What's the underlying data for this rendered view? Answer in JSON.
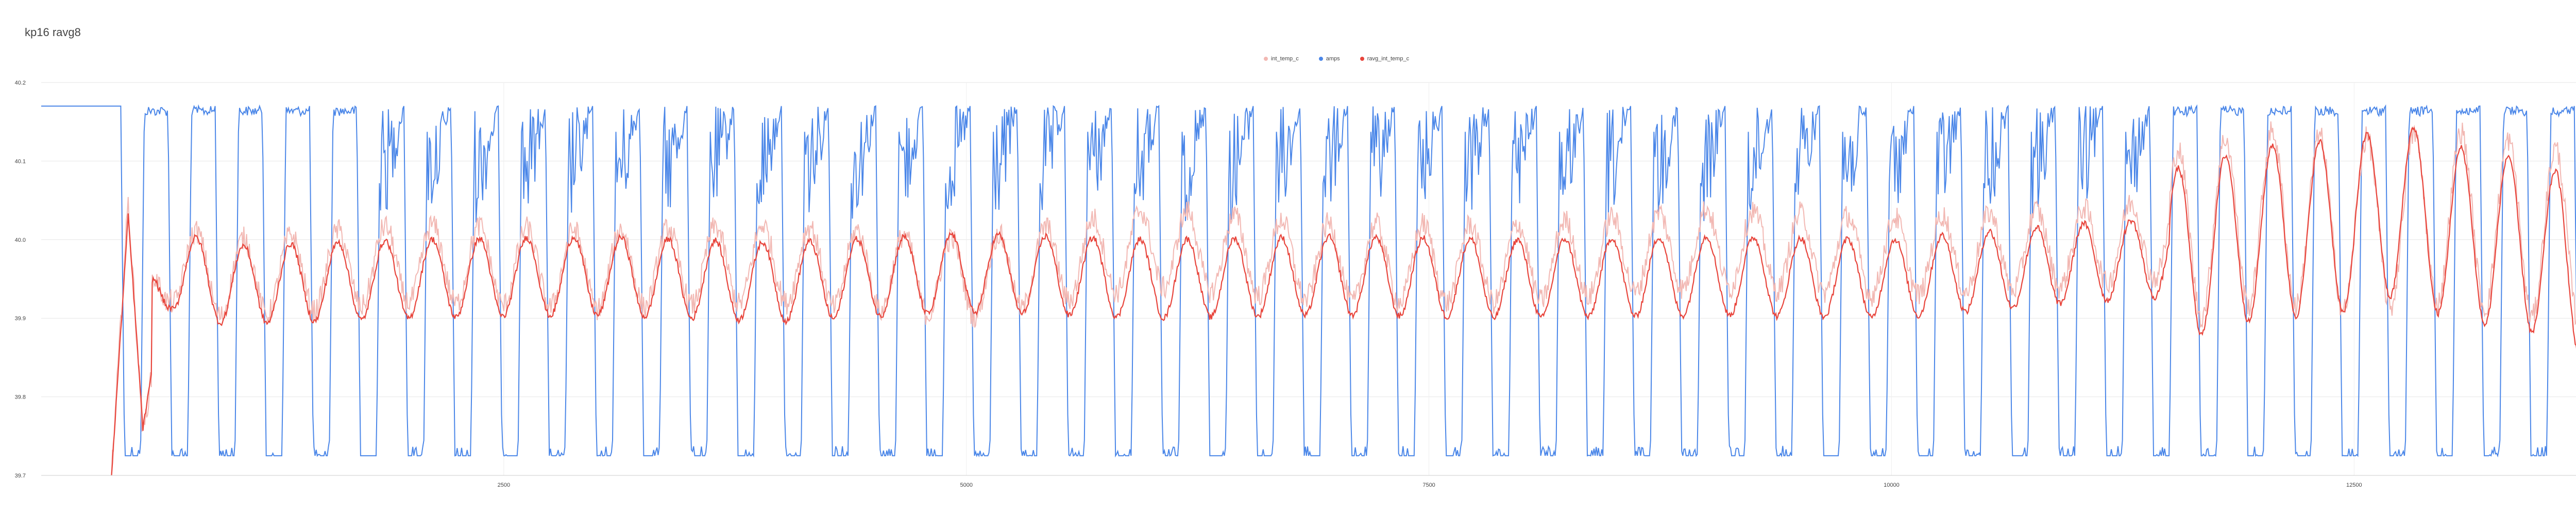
{
  "chart_data": {
    "type": "line",
    "title": "kp16 ravg8",
    "legend": {
      "position": "top",
      "items": [
        {
          "label": "int_temp_c",
          "color": "#f2b8b3"
        },
        {
          "label": "amps",
          "color": "#4a86e8"
        },
        {
          "label": "ravg_int_temp_c",
          "color": "#e8453c"
        }
      ]
    },
    "x_axis": {
      "label": "",
      "range": [
        0,
        14000
      ],
      "ticks": [
        "2500",
        "5000",
        "7500",
        "10000",
        "12500"
      ],
      "tick_values": [
        2500,
        5000,
        7500,
        10000,
        12500
      ]
    },
    "y_axis_left": {
      "label": "",
      "range": [
        39.7,
        40.2
      ],
      "ticks": [
        "39.7",
        "39.8",
        "39.9",
        "40.0",
        "40.1",
        "40.2"
      ],
      "tick_values": [
        39.7,
        39.8,
        39.9,
        40.0,
        40.1,
        40.2
      ]
    },
    "y_axis_right": {
      "label": "",
      "range": [
        0,
        2.0
      ],
      "ticks": [
        "0.0",
        "0.5",
        "1.0",
        "1.5",
        "2.0"
      ],
      "tick_values": [
        0,
        0.5,
        1.0,
        1.5,
        2.0
      ]
    },
    "grid": true,
    "series": [
      {
        "name": "amps",
        "axis": "right",
        "color": "#4a86e8",
        "description": "On/off heater current: flat 1.88 from x=0 to ~430, then oscillates between ~0.1 and ~1.88 with ~53 cycles (period ~255).",
        "x": [
          0,
          430,
          475,
          520,
          620,
          700,
          800,
          880,
          1000,
          1100,
          1200,
          1300,
          1500,
          1700,
          2000,
          2500,
          3000,
          3500,
          4000,
          4500,
          5000,
          5500,
          6000,
          6500,
          7000,
          7500,
          8000,
          8500,
          9000,
          9500,
          10000,
          10500,
          11000,
          11500,
          12000,
          12500,
          13000,
          13500,
          14000
        ],
        "values": [
          1.88,
          1.88,
          0.1,
          1.88,
          0.1,
          1.88,
          0.1,
          1.88,
          0.1,
          1.88,
          0.1,
          1.88,
          0.1,
          1.88,
          0.1,
          1.88,
          0.1,
          1.88,
          0.1,
          1.88,
          0.1,
          1.88,
          0.1,
          1.88,
          0.1,
          1.88,
          0.1,
          1.88,
          0.1,
          1.88,
          0.1,
          1.88,
          0.1,
          1.88,
          0.1,
          1.88,
          0.1,
          1.88,
          1.88
        ]
      },
      {
        "name": "int_temp_c",
        "axis": "left",
        "color": "#f2b8b3",
        "description": "Raw internal temperature, noisy band closely around ravg_int_temp_c.",
        "x": [
          380,
          470,
          550,
          700,
          1000,
          2000,
          3000,
          4000,
          5000,
          6000,
          7000,
          8000,
          9000,
          10000,
          11000,
          11500,
          12000,
          12500,
          13000,
          13500,
          14000
        ],
        "values": [
          39.7,
          40.05,
          39.75,
          40.0,
          39.95,
          40.0,
          39.98,
          40.0,
          39.95,
          40.05,
          40.0,
          40.0,
          40.05,
          40.02,
          40.05,
          40.08,
          40.15,
          40.12,
          40.15,
          40.1,
          40.05
        ]
      },
      {
        "name": "ravg_int_temp_c",
        "axis": "left",
        "color": "#e8453c",
        "description": "Running average temperature oscillating around ~39.95; starts at 39.7 (x~380), overshoots to ~40.03 then settles, amplitude grows near the end (peaks ~40.18 at x~12750).",
        "x": [
          380,
          470,
          550,
          700,
          1000,
          2000,
          3000,
          4000,
          5000,
          6000,
          7000,
          8000,
          9000,
          10000,
          11000,
          11500,
          12000,
          12500,
          12750,
          13000,
          13500,
          14000
        ],
        "values": [
          39.7,
          40.03,
          39.76,
          39.98,
          39.93,
          39.95,
          39.96,
          39.94,
          39.97,
          39.95,
          39.96,
          39.95,
          39.96,
          39.95,
          40.0,
          40.02,
          40.1,
          40.12,
          40.18,
          40.1,
          40.05,
          39.88
        ]
      }
    ]
  }
}
